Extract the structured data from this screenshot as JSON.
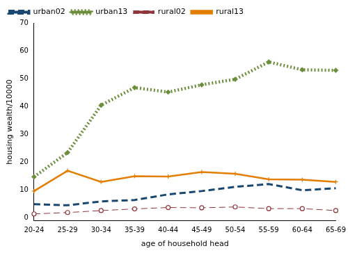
{
  "chart_data": {
    "type": "line",
    "x_label": "age of household head",
    "y_label": "housing wealth/10000",
    "categories": [
      "20-24",
      "25-29",
      "30-34",
      "35-39",
      "40-44",
      "45-49",
      "50-54",
      "55-59",
      "60-64",
      "65-69"
    ],
    "series": [
      {
        "name": "urban02",
        "color": "#1a476f",
        "line_style": "dashed",
        "marker": "none",
        "values": [
          5,
          4.6,
          6,
          6.5,
          8.5,
          9.7,
          11.2,
          12.2,
          10,
          10.7
        ]
      },
      {
        "name": "urban13",
        "color": "#6b8e3a",
        "line_style": "dotted",
        "marker": "diamond",
        "values": [
          14.8,
          23.5,
          40.5,
          46.8,
          45.2,
          47.8,
          49.8,
          56,
          53.2,
          53
        ]
      },
      {
        "name": "rural02",
        "color": "#90353b",
        "line_style": "dashed",
        "marker": "circle",
        "values": [
          1.5,
          2,
          2.7,
          3.3,
          3.8,
          3.7,
          4,
          3.4,
          3.4,
          2.7
        ]
      },
      {
        "name": "rural13",
        "color": "#e37e00",
        "line_style": "solid",
        "marker": "plus",
        "values": [
          9.7,
          17,
          13,
          15,
          14.9,
          16.5,
          15.9,
          13.9,
          13.8,
          13
        ]
      }
    ],
    "ylim": [
      -1,
      70
    ],
    "yticks": [
      0,
      10,
      20,
      30,
      40,
      50,
      60,
      70
    ],
    "grid": false,
    "legend": "top-left"
  }
}
